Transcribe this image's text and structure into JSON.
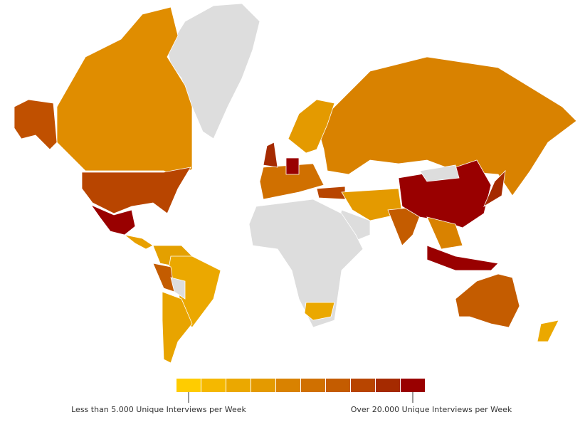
{
  "legend": {
    "colors": [
      "#ffcc00",
      "#f5b800",
      "#eba800",
      "#e49a00",
      "#d98200",
      "#d07000",
      "#c45c00",
      "#b84500",
      "#a52a00",
      "#990000"
    ],
    "low_label": "Less than 5.000 Unique Interviews per Week",
    "high_label": "Over 20.000 Unique Interviews per Week"
  }
}
